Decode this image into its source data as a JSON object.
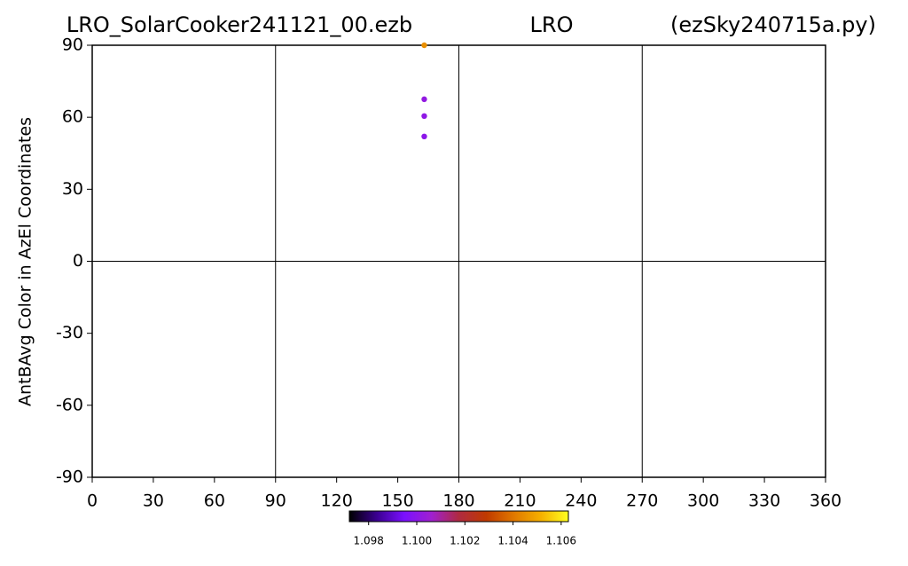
{
  "chart_data": {
    "type": "scatter",
    "title_parts": [
      "LRO_SolarCooker241121_00.ezb",
      "LRO",
      "(ezSky240715a.py)"
    ],
    "y_label": "AntBAvg Color in AzEl Coordinates",
    "x": [
      163,
      163,
      163,
      163
    ],
    "values": [
      90,
      67.5,
      60.5,
      52
    ],
    "c": [
      1.1045,
      1.1002,
      1.1001,
      1.1
    ],
    "xlim": [
      0,
      360
    ],
    "xticks": [
      0,
      30,
      60,
      90,
      120,
      150,
      180,
      210,
      240,
      270,
      300,
      330,
      360
    ],
    "ylim": [
      -90,
      90
    ],
    "yticks": [
      -90,
      -60,
      -30,
      0,
      30,
      60,
      90
    ],
    "xgrid": [
      90,
      180,
      270
    ],
    "ygrid": [
      0
    ],
    "clim": [
      1.0972,
      1.1063
    ],
    "cticks": [
      1.098,
      {
        "value": 1.1,
        "label": "1.100"
      },
      1.102,
      1.104,
      1.106
    ],
    "colormap": [
      "#000000",
      "#3a0090",
      "#7a10ff",
      "#a020d0",
      "#b02a40",
      "#c03a00",
      "#e07800",
      "#f5b000",
      "#ffff20"
    ]
  }
}
